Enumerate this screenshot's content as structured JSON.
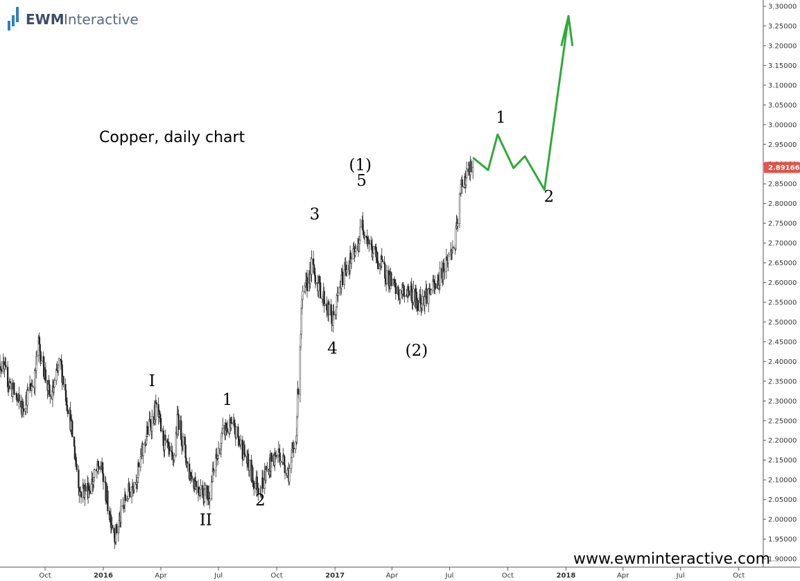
{
  "logo": {
    "brand": "EWM",
    "name": "Interactive"
  },
  "watermark": "www.ewminteractive.com",
  "colors": {
    "projection": "#2eaa38",
    "candle": "#222222",
    "last_price_bg": "#e05548"
  },
  "chart_data": {
    "type": "candlestick",
    "title": "Copper, daily chart",
    "ylim": [
      1.9,
      3.3
    ],
    "y_ticks": [
      "1.90000",
      "1.95000",
      "2.00000",
      "2.05000",
      "2.10000",
      "2.15000",
      "2.20000",
      "2.25000",
      "2.30000",
      "2.35000",
      "2.40000",
      "2.45000",
      "2.50000",
      "2.55000",
      "2.60000",
      "2.65000",
      "2.70000",
      "2.75000",
      "2.80000",
      "2.85000",
      "2.90000",
      "2.95000",
      "3.00000",
      "3.05000",
      "3.10000",
      "3.15000",
      "3.20000",
      "3.25000",
      "3.30000"
    ],
    "x_ticks": [
      {
        "label": "Oct",
        "date": "2015-10",
        "bold": false
      },
      {
        "label": "2016",
        "date": "2016-01",
        "bold": true
      },
      {
        "label": "Apr",
        "date": "2016-04",
        "bold": false
      },
      {
        "label": "Jul",
        "date": "2016-07",
        "bold": false
      },
      {
        "label": "Oct",
        "date": "2016-10",
        "bold": false
      },
      {
        "label": "2017",
        "date": "2017-01",
        "bold": true
      },
      {
        "label": "Apr",
        "date": "2017-04",
        "bold": false
      },
      {
        "label": "Jul",
        "date": "2017-07",
        "bold": false
      },
      {
        "label": "Oct",
        "date": "2017-10",
        "bold": false
      },
      {
        "label": "2018",
        "date": "2018-01",
        "bold": true
      },
      {
        "label": "Apr",
        "date": "2018-04",
        "bold": false
      },
      {
        "label": "Jul",
        "date": "2018-07",
        "bold": false
      },
      {
        "label": "Oct",
        "date": "2018-10",
        "bold": false
      }
    ],
    "last_price": {
      "label": "2.89166",
      "value": 2.89166
    },
    "price_path": [
      [
        "2015-07-15",
        2.42
      ],
      [
        "2015-08-10",
        2.33
      ],
      [
        "2015-08-25",
        2.28
      ],
      [
        "2015-09-15",
        2.36
      ],
      [
        "2015-09-20",
        2.45
      ],
      [
        "2015-10-10",
        2.3
      ],
      [
        "2015-10-25",
        2.4
      ],
      [
        "2015-11-10",
        2.25
      ],
      [
        "2015-11-25",
        2.07
      ],
      [
        "2015-12-10",
        2.08
      ],
      [
        "2015-12-28",
        2.14
      ],
      [
        "2016-01-10",
        2.02
      ],
      [
        "2016-01-20",
        1.96
      ],
      [
        "2016-02-05",
        2.05
      ],
      [
        "2016-02-25",
        2.12
      ],
      [
        "2016-03-10",
        2.22
      ],
      [
        "2016-03-25",
        2.28
      ],
      [
        "2016-04-05",
        2.2
      ],
      [
        "2016-04-20",
        2.14
      ],
      [
        "2016-04-28",
        2.26
      ],
      [
        "2016-05-15",
        2.12
      ],
      [
        "2016-05-31",
        2.08
      ],
      [
        "2016-06-15",
        2.06
      ],
      [
        "2016-06-25",
        2.13
      ],
      [
        "2016-07-10",
        2.23
      ],
      [
        "2016-07-25",
        2.23
      ],
      [
        "2016-08-10",
        2.17
      ],
      [
        "2016-08-25",
        2.1
      ],
      [
        "2016-09-05",
        2.08
      ],
      [
        "2016-09-20",
        2.14
      ],
      [
        "2016-10-05",
        2.17
      ],
      [
        "2016-10-20",
        2.12
      ],
      [
        "2016-10-31",
        2.2
      ],
      [
        "2016-11-10",
        2.55
      ],
      [
        "2016-11-25",
        2.64
      ],
      [
        "2016-12-10",
        2.58
      ],
      [
        "2016-12-28",
        2.5
      ],
      [
        "2017-01-15",
        2.63
      ],
      [
        "2017-02-05",
        2.68
      ],
      [
        "2017-02-13",
        2.75
      ],
      [
        "2017-03-01",
        2.68
      ],
      [
        "2017-03-20",
        2.63
      ],
      [
        "2017-04-10",
        2.57
      ],
      [
        "2017-04-30",
        2.58
      ],
      [
        "2017-05-10",
        2.55
      ],
      [
        "2017-05-25",
        2.57
      ],
      [
        "2017-06-10",
        2.59
      ],
      [
        "2017-06-25",
        2.65
      ],
      [
        "2017-07-10",
        2.7
      ],
      [
        "2017-07-20",
        2.85
      ],
      [
        "2017-07-31",
        2.88
      ],
      [
        "2017-08-07",
        2.89166
      ]
    ],
    "projection_path": [
      [
        "2017-08-08",
        2.915
      ],
      [
        "2017-08-31",
        2.885
      ],
      [
        "2017-09-15",
        2.975
      ],
      [
        "2017-10-10",
        2.89
      ],
      [
        "2017-10-28",
        2.92
      ],
      [
        "2017-11-28",
        2.835
      ],
      [
        "2018-01-05",
        3.275
      ]
    ],
    "projection_arrow_from": "2017-12-25",
    "wave_labels": [
      {
        "text": "I",
        "date": "2016-03-18",
        "price": 2.337
      },
      {
        "text": "II",
        "date": "2016-06-11",
        "price": 1.985
      },
      {
        "text": "1",
        "date": "2016-07-15",
        "price": 2.29
      },
      {
        "text": "2",
        "date": "2016-09-05",
        "price": 2.035
      },
      {
        "text": "3",
        "date": "2016-11-30",
        "price": 2.76
      },
      {
        "text": "4",
        "date": "2016-12-28",
        "price": 2.42
      },
      {
        "text": "5",
        "date": "2017-02-12",
        "price": 2.845
      },
      {
        "text": "(1)",
        "date": "2017-02-10",
        "price": 2.885
      },
      {
        "text": "(2)",
        "date": "2017-05-10",
        "price": 2.415
      },
      {
        "text": "1",
        "date": "2017-09-20",
        "price": 3.005
      },
      {
        "text": "2",
        "date": "2017-12-05",
        "price": 2.805
      }
    ]
  }
}
